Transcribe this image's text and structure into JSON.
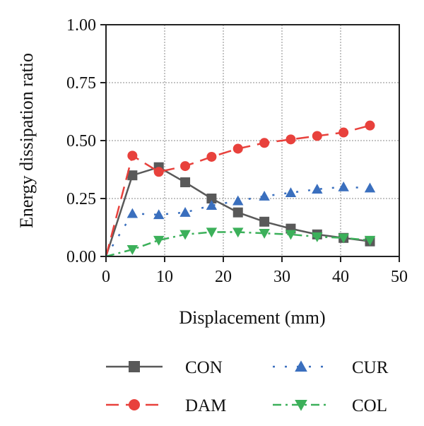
{
  "chart_data": {
    "type": "line",
    "title": "",
    "xlabel": "Displacement (mm)",
    "ylabel": "Energy dissipation ratio",
    "xlim": [
      0,
      50
    ],
    "ylim": [
      0,
      1.0
    ],
    "xticks": [
      "0",
      "10",
      "20",
      "30",
      "40",
      "50"
    ],
    "yticks": [
      "0.00",
      "0.25",
      "0.50",
      "0.75",
      "1.00"
    ],
    "grid": true,
    "legend_position": "bottom",
    "series": [
      {
        "name": "CON",
        "color": "#595959",
        "line_style": "solid",
        "marker": "square",
        "x": [
          0,
          4.5,
          9.0,
          13.5,
          18.0,
          22.5,
          27.0,
          31.5,
          36.0,
          40.5,
          45.0
        ],
        "y": [
          0.0,
          0.35,
          0.385,
          0.32,
          0.25,
          0.19,
          0.15,
          0.12,
          0.095,
          0.08,
          0.065
        ]
      },
      {
        "name": "DAM",
        "color": "#e8413c",
        "line_style": "dashed",
        "marker": "circle",
        "x": [
          0,
          4.5,
          9.0,
          13.5,
          18.0,
          22.5,
          27.0,
          31.5,
          36.0,
          40.5,
          45.0
        ],
        "y": [
          0.0,
          0.435,
          0.365,
          0.39,
          0.43,
          0.465,
          0.49,
          0.505,
          0.52,
          0.535,
          0.565
        ]
      },
      {
        "name": "CUR",
        "color": "#3a6fbe",
        "line_style": "dotted",
        "marker": "triangle-up",
        "x": [
          0,
          4.5,
          9.0,
          13.5,
          18.0,
          22.5,
          27.0,
          31.5,
          36.0,
          40.5,
          45.0
        ],
        "y": [
          0.0,
          0.185,
          0.18,
          0.19,
          0.22,
          0.24,
          0.26,
          0.275,
          0.29,
          0.3,
          0.295
        ]
      },
      {
        "name": "COL",
        "color": "#3cb05a",
        "line_style": "dash-dot",
        "marker": "triangle-down",
        "x": [
          0,
          4.5,
          9.0,
          13.5,
          18.0,
          22.5,
          27.0,
          31.5,
          36.0,
          40.5,
          45.0
        ],
        "y": [
          0.0,
          0.03,
          0.07,
          0.095,
          0.105,
          0.105,
          0.1,
          0.095,
          0.085,
          0.08,
          0.07
        ]
      }
    ]
  }
}
